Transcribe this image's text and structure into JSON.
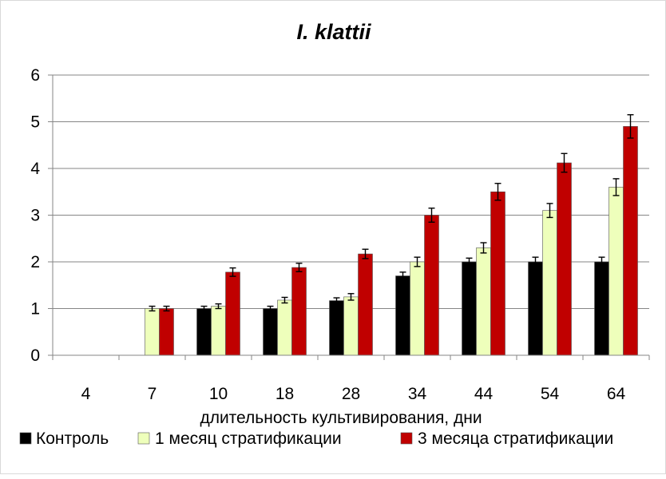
{
  "chart_data": {
    "type": "bar",
    "title": "I. klattii",
    "xlabel": "длительность культивирования, дни",
    "ylabel": "",
    "categories": [
      "4",
      "7",
      "10",
      "18",
      "28",
      "34",
      "44",
      "54",
      "64"
    ],
    "ylim": [
      0,
      6
    ],
    "yticks": [
      0,
      1,
      2,
      3,
      4,
      5,
      6
    ],
    "grid": true,
    "legend_position": "bottom",
    "series": [
      {
        "name": "Контроль",
        "color": "#000000",
        "values": [
          null,
          null,
          1.0,
          1.0,
          1.17,
          1.7,
          2.0,
          2.0,
          2.0
        ],
        "errors": [
          null,
          null,
          0.05,
          0.05,
          0.06,
          0.08,
          0.08,
          0.1,
          0.1
        ]
      },
      {
        "name": "1 месяц стратификации",
        "color": "#eeffbb",
        "values": [
          null,
          1.0,
          1.05,
          1.18,
          1.25,
          2.0,
          2.3,
          3.1,
          3.6
        ],
        "errors": [
          null,
          0.05,
          0.05,
          0.06,
          0.07,
          0.1,
          0.11,
          0.15,
          0.18
        ]
      },
      {
        "name": "3 месяца стратификации",
        "color": "#c00000",
        "values": [
          null,
          1.0,
          1.78,
          1.88,
          2.17,
          3.0,
          3.5,
          4.12,
          4.9
        ],
        "errors": [
          null,
          0.05,
          0.09,
          0.09,
          0.1,
          0.15,
          0.18,
          0.2,
          0.25
        ]
      }
    ]
  }
}
